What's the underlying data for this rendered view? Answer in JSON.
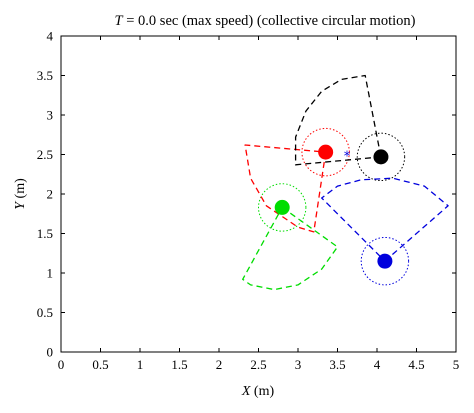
{
  "chart_data": {
    "type": "scatter",
    "title": "T = 0.0 sec (max speed) (collective circular motion)",
    "title_parts": {
      "var": "T",
      "rest": " = 0.0 sec (max speed) (collective circular motion)"
    },
    "xlabel": "(m)",
    "ylabel": "(m)",
    "xlabel_var": "X",
    "ylabel_var": "Y",
    "xlim": [
      0,
      5
    ],
    "ylim": [
      0,
      4
    ],
    "xticks": [
      "0",
      "0.5",
      "1",
      "1.5",
      "2",
      "2.5",
      "3",
      "3.5",
      "4",
      "4.5",
      "5"
    ],
    "yticks": [
      "0",
      "0.5",
      "1",
      "1.5",
      "2",
      "2.5",
      "3",
      "3.5",
      "4"
    ],
    "grid": false,
    "agents": [
      {
        "color": "#ff0000",
        "x": 3.35,
        "y": 2.53,
        "range_radius": 0.3,
        "sector_polygon": [
          [
            3.35,
            2.53
          ],
          [
            3.2,
            1.52
          ],
          [
            3.0,
            1.58
          ],
          [
            2.6,
            1.85
          ],
          [
            2.4,
            2.2
          ],
          [
            2.33,
            2.62
          ]
        ]
      },
      {
        "color": "#000000",
        "x": 4.05,
        "y": 2.47,
        "range_radius": 0.3,
        "sector_polygon": [
          [
            4.05,
            2.47
          ],
          [
            2.97,
            2.37
          ],
          [
            2.97,
            2.72
          ],
          [
            3.1,
            3.05
          ],
          [
            3.3,
            3.3
          ],
          [
            3.55,
            3.45
          ],
          [
            3.85,
            3.5
          ]
        ]
      },
      {
        "color": "#00dd00",
        "x": 2.8,
        "y": 1.83,
        "range_radius": 0.3,
        "sector_polygon": [
          [
            2.8,
            1.83
          ],
          [
            3.5,
            1.33
          ],
          [
            3.3,
            1.05
          ],
          [
            3.0,
            0.85
          ],
          [
            2.7,
            0.79
          ],
          [
            2.4,
            0.85
          ],
          [
            2.3,
            0.92
          ]
        ]
      },
      {
        "color": "#0000dd",
        "x": 4.1,
        "y": 1.15,
        "range_radius": 0.3,
        "sector_polygon": [
          [
            4.1,
            1.15
          ],
          [
            4.9,
            1.85
          ],
          [
            4.6,
            2.1
          ],
          [
            4.2,
            2.2
          ],
          [
            3.8,
            2.18
          ],
          [
            3.5,
            2.1
          ],
          [
            3.3,
            1.95
          ]
        ]
      }
    ],
    "marker": {
      "color": "#0000dd",
      "symbol": "*",
      "x": 3.62,
      "y": 2.5
    }
  }
}
